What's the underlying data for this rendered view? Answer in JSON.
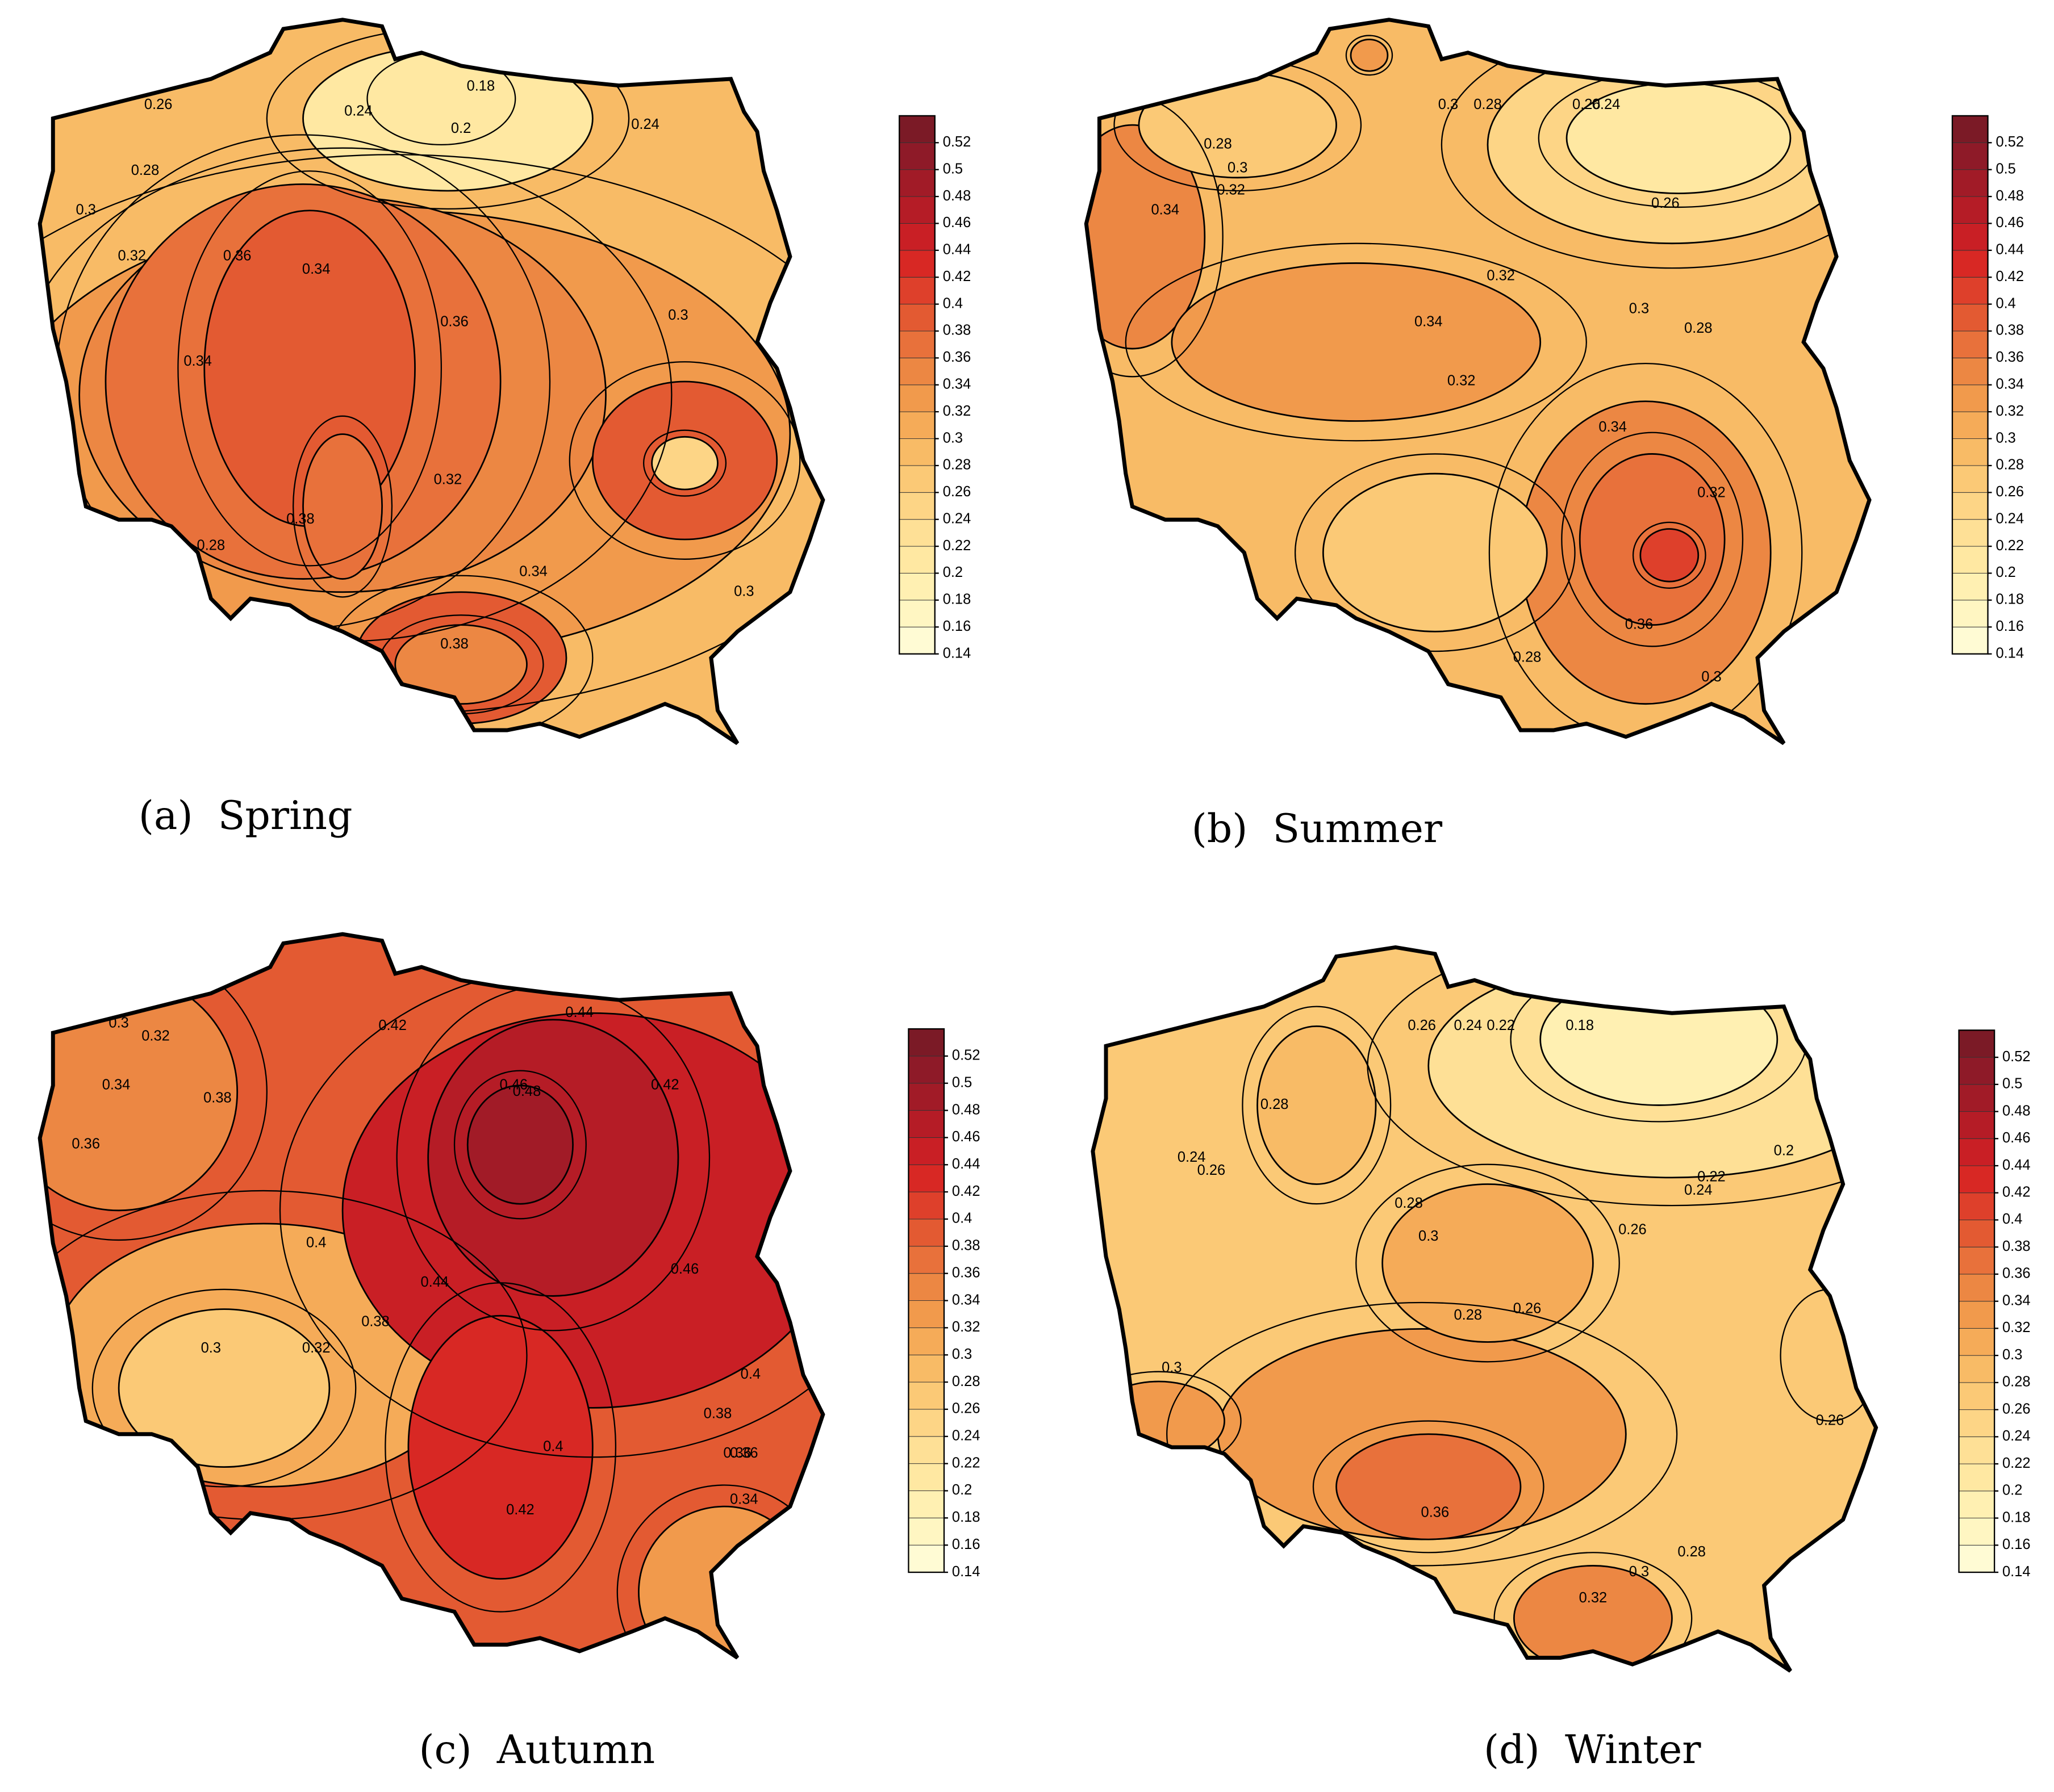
{
  "colorbar": {
    "ticks": [
      0.14,
      0.16,
      0.18,
      0.2,
      0.22,
      0.24,
      0.26,
      0.28,
      0.3,
      0.32,
      0.34,
      0.36,
      0.38,
      0.4,
      0.42,
      0.44,
      0.46,
      0.48,
      0.5,
      0.52
    ],
    "colors": [
      "#fffbd4",
      "#fff6c2",
      "#fff0b2",
      "#ffe8a2",
      "#fee096",
      "#fdd586",
      "#fbc976",
      "#f8bb66",
      "#f5ab58",
      "#f19a4c",
      "#ec8743",
      "#e8713b",
      "#e35a32",
      "#de402b",
      "#d82824",
      "#c91f25",
      "#b51c26",
      "#a11b27",
      "#8e1a28",
      "#7b1a26"
    ]
  },
  "panels": [
    {
      "caption": "(a)  Spring",
      "levels": [
        0.28,
        0.32,
        0.34,
        0.36,
        0.38,
        0.36,
        0.38,
        0.34,
        0.38,
        0.24,
        0.2
      ],
      "contour_labels": [
        0.26,
        0.24,
        0.2,
        0.18,
        0.24,
        0.28,
        0.3,
        0.32,
        0.36,
        0.34,
        0.36,
        0.3,
        0.34,
        0.32,
        0.38,
        0.28,
        0.34,
        0.3,
        0.38
      ]
    },
    {
      "caption": "(b)  Summer",
      "levels": [
        0.28,
        0.24,
        0.2,
        0.34,
        0.32,
        0.34,
        0.36,
        0.4,
        0.26,
        0.26,
        0.32
      ],
      "contour_labels": [
        0.28,
        0.3,
        0.32,
        0.34,
        0.3,
        0.28,
        0.26,
        0.24,
        0.26,
        0.32,
        0.34,
        0.3,
        0.32,
        0.28,
        0.34,
        0.32,
        0.28,
        0.36,
        0.3
      ]
    },
    {
      "caption": "(c)  Autumn",
      "levels": [
        0.38,
        0.3,
        0.26,
        0.34,
        0.44,
        0.46,
        0.48,
        0.42,
        0.32
      ],
      "contour_labels": [
        0.3,
        0.32,
        0.34,
        0.36,
        0.38,
        0.4,
        0.42,
        0.44,
        0.46,
        0.48,
        0.42,
        0.38,
        0.36,
        0.44,
        0.46,
        0.4,
        0.3,
        0.32,
        0.42,
        0.4,
        0.38,
        0.36,
        0.34
      ]
    },
    {
      "caption": "(d)  Winter",
      "levels": [
        0.26,
        0.22,
        0.18,
        0.28,
        0.32,
        0.36,
        0.34,
        0.3,
        0.32
      ],
      "contour_labels": [
        0.26,
        0.24,
        0.22,
        0.18,
        0.28,
        0.26,
        0.24,
        0.2,
        0.22,
        0.28,
        0.3,
        0.24,
        0.26,
        0.26,
        0.28,
        0.3,
        0.36,
        0.32,
        0.3,
        0.28,
        0.26
      ]
    }
  ]
}
